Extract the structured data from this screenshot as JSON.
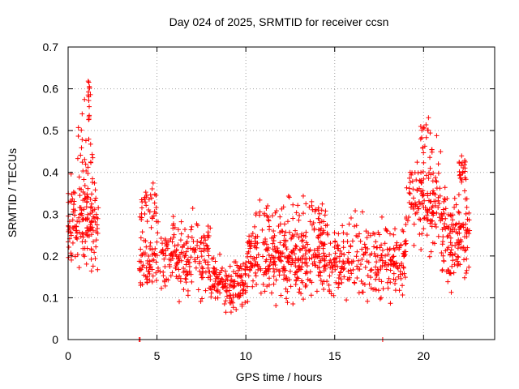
{
  "chart_data": {
    "type": "scatter",
    "title": "Day 024 of 2025, SRMTID for receiver ccsn",
    "xlabel": "GPS time / hours",
    "ylabel": "SRMTID / TECUs",
    "xlim": [
      0,
      24
    ],
    "ylim": [
      0,
      0.7
    ],
    "x_ticks": [
      0,
      5,
      10,
      15,
      20
    ],
    "x_tick_labels": [
      "0",
      "5",
      "10",
      "15",
      "20"
    ],
    "y_ticks": [
      0,
      0.1,
      0.2,
      0.3,
      0.4,
      0.5,
      0.6,
      0.7
    ],
    "y_tick_labels": [
      "0",
      "0.1",
      "0.2",
      "0.3",
      "0.4",
      "0.5",
      "0.6",
      "0.7"
    ],
    "grid": true,
    "marker": "+",
    "color": "#ff0000",
    "series": [
      {
        "name": "SRMTID",
        "segments": [
          {
            "x_start": 0.0,
            "x_end": 1.7,
            "y_center": 0.28,
            "spread": 0.09,
            "n": 150
          },
          {
            "x_start": 0.5,
            "x_end": 1.4,
            "y_center": 0.45,
            "spread": 0.1,
            "n": 30
          },
          {
            "x_start": 1.1,
            "x_end": 1.3,
            "y_center": 0.58,
            "spread": 0.06,
            "n": 12
          },
          {
            "x_start": 4.0,
            "x_end": 8.0,
            "y_center": 0.2,
            "spread": 0.08,
            "n": 260
          },
          {
            "x_start": 4.0,
            "x_end": 5.0,
            "y_center": 0.32,
            "spread": 0.05,
            "n": 30
          },
          {
            "x_start": 8.0,
            "x_end": 10.0,
            "y_center": 0.14,
            "spread": 0.06,
            "n": 140
          },
          {
            "x_start": 10.0,
            "x_end": 19.0,
            "y_center": 0.19,
            "spread": 0.08,
            "n": 600
          },
          {
            "x_start": 10.5,
            "x_end": 14.5,
            "y_center": 0.3,
            "spread": 0.05,
            "n": 60
          },
          {
            "x_start": 19.0,
            "x_end": 21.0,
            "y_center": 0.33,
            "spread": 0.1,
            "n": 140
          },
          {
            "x_start": 19.8,
            "x_end": 20.8,
            "y_center": 0.48,
            "spread": 0.06,
            "n": 20
          },
          {
            "x_start": 21.0,
            "x_end": 22.6,
            "y_center": 0.25,
            "spread": 0.1,
            "n": 140
          },
          {
            "x_start": 22.0,
            "x_end": 22.4,
            "y_center": 0.41,
            "spread": 0.03,
            "n": 20
          }
        ],
        "zero_points": [
          4.0,
          4.05,
          17.7
        ]
      }
    ]
  }
}
